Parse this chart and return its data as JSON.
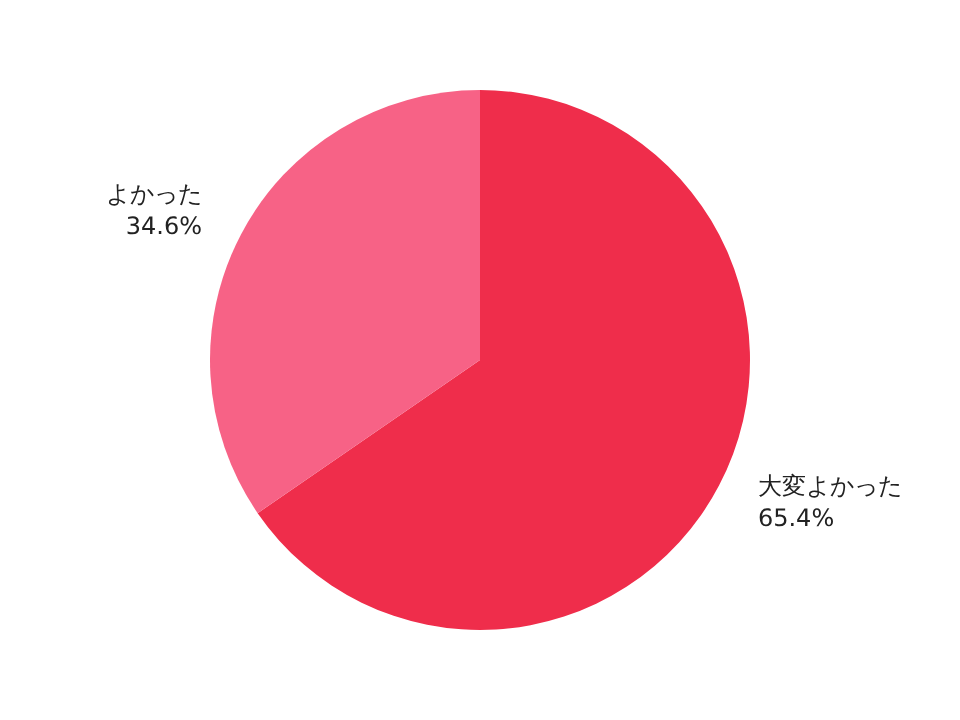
{
  "chart_data": {
    "type": "pie",
    "categories": [
      "大変よかった",
      "よかった"
    ],
    "values": [
      65.4,
      34.6
    ],
    "colors": [
      "#ef2d4b",
      "#f76286"
    ],
    "value_labels": [
      "65.4%",
      "34.6%"
    ]
  }
}
